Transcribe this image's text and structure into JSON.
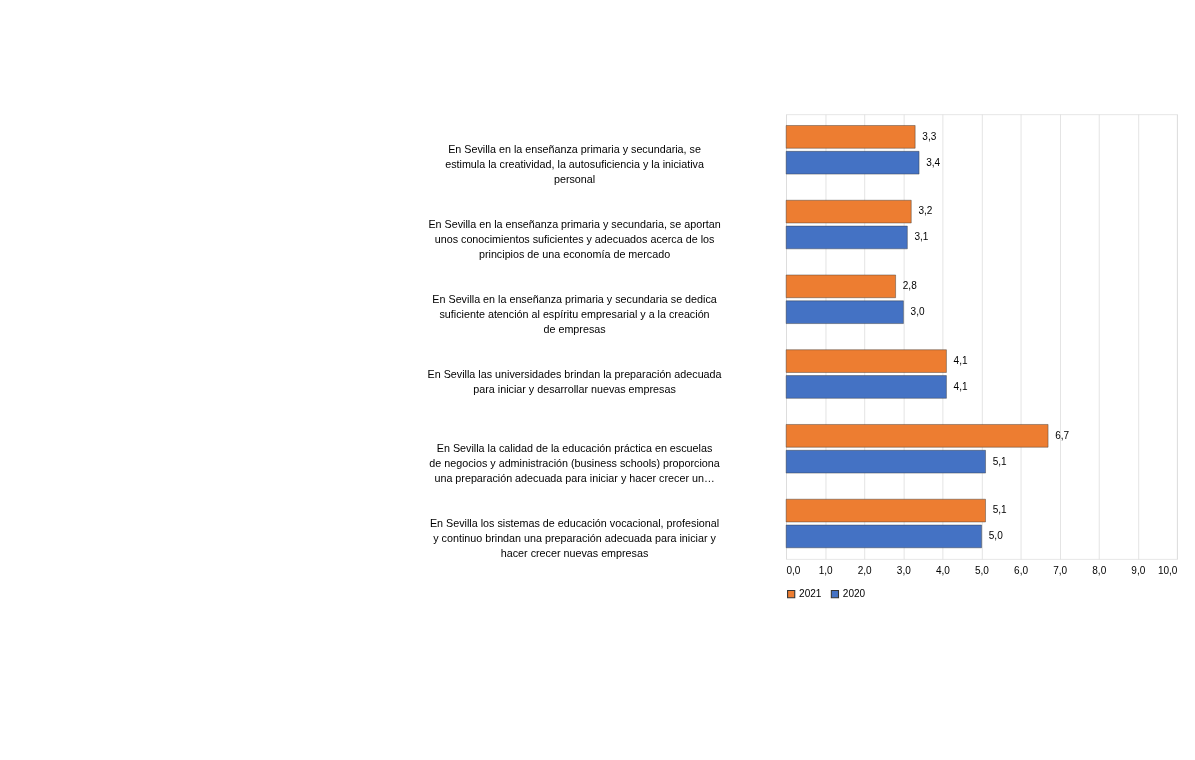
{
  "chart_data": {
    "type": "bar",
    "orientation": "horizontal",
    "categories": [
      "En Sevilla en la enseñanza primaria y secundaria, se estimula la creatividad, la autosuficiencia y la iniciativa personal",
      "En Sevilla en la enseñanza primaria y secundaria, se aportan unos conocimientos suficientes y adecuados acerca de los principios de una economía de mercado",
      "En Sevilla en la enseñanza primaria y secundaria se dedica suficiente atención al espíritu empresarial y a la creación de empresas",
      "En Sevilla las universidades brindan la preparación adecuada para iniciar y desarrollar nuevas empresas",
      "En Sevilla la calidad de la educación práctica en escuelas de negocios y administración (business schools) proporciona una preparación adecuada para iniciar y hacer crecer un…",
      "En Sevilla los sistemas de educación vocacional, profesional y continuo brindan una preparación adecuada para iniciar y hacer crecer nuevas empresas"
    ],
    "series": [
      {
        "name": "2021",
        "color": "#ed7d31",
        "values": [
          3.3,
          3.2,
          2.8,
          4.1,
          6.7,
          5.1
        ],
        "value_labels": [
          "3,3",
          "3,2",
          "2,8",
          "4,1",
          "6,7",
          "5,1"
        ]
      },
      {
        "name": "2020",
        "color": "#4472c4",
        "values": [
          3.4,
          3.1,
          3.0,
          4.1,
          5.1,
          5.0
        ],
        "value_labels": [
          "3,4",
          "3,1",
          "3,0",
          "4,1",
          "5,1",
          "5,0"
        ]
      }
    ],
    "xlim": [
      0,
      10
    ],
    "xticks": [
      {
        "value": 0,
        "label": "0,0"
      },
      {
        "value": 1,
        "label": "1,0"
      },
      {
        "value": 2,
        "label": "2,0"
      },
      {
        "value": 3,
        "label": "3,0"
      },
      {
        "value": 4,
        "label": "4,0"
      },
      {
        "value": 5,
        "label": "5,0"
      },
      {
        "value": 6,
        "label": "6,0"
      },
      {
        "value": 7,
        "label": "7,0"
      },
      {
        "value": 8,
        "label": "8,0"
      },
      {
        "value": 9,
        "label": "9,0"
      },
      {
        "value": 10,
        "label": "10,0"
      }
    ],
    "grid": "x",
    "legend": "bottom"
  }
}
